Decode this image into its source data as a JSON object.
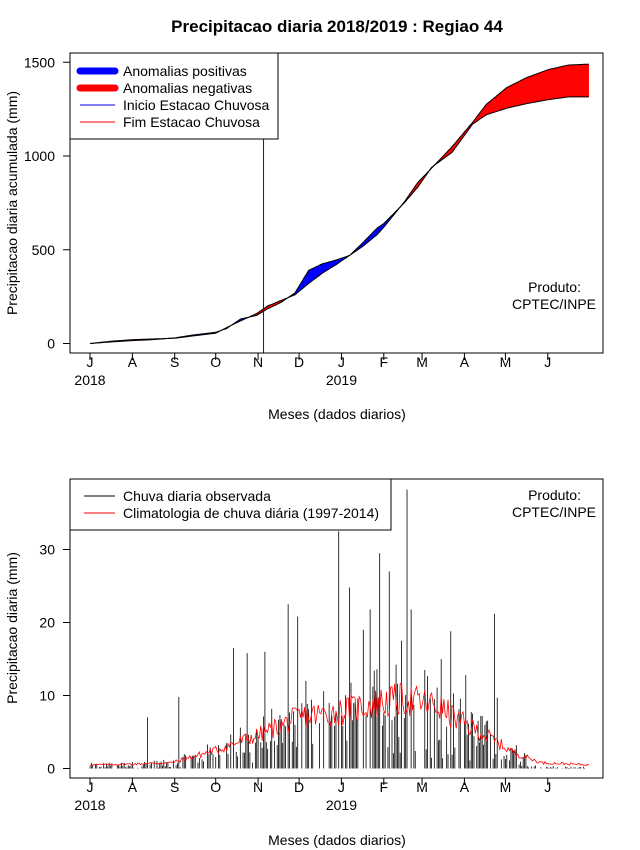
{
  "chart_data": [
    {
      "type": "area",
      "title": "Precipitacao diaria 2018/2019 : Regiao 44",
      "xlabel": "Meses (dados diarios)",
      "ylabel": "Precipitacao diaria acumulada (mm)",
      "ylim": [
        0,
        1550
      ],
      "yticks": [
        0,
        500,
        1000,
        1500
      ],
      "month_ticks": [
        "J",
        "A",
        "S",
        "O",
        "N",
        "D",
        "J",
        "F",
        "M",
        "A",
        "M",
        "J"
      ],
      "year_labels": [
        {
          "label": "2018",
          "month_index": 0
        },
        {
          "label": "2019",
          "month_index": 6
        }
      ],
      "legend": [
        "Anomalias positivas",
        "Anomalias negativas",
        "Inicio Estacao Chuvosa",
        "Fim Estacao Chuvosa"
      ],
      "colors": {
        "positive": "#0000ff",
        "negative": "#ff0000",
        "onset": "#0000ff",
        "end": "#ff0000",
        "line": "#000000"
      },
      "onset_day": 127,
      "annotation": [
        "Produto:",
        "CPTEC/INPE"
      ],
      "series": [
        {
          "name": "Observada acumulada (mm)",
          "x": [
            0,
            15,
            30,
            45,
            62,
            75,
            92,
            100,
            110,
            122,
            130,
            140,
            150,
            160,
            170,
            180,
            190,
            200,
            210,
            215,
            230,
            240,
            250,
            265,
            280,
            290,
            305,
            320,
            335,
            350,
            365
          ],
          "values": [
            0,
            8,
            15,
            20,
            30,
            45,
            60,
            80,
            130,
            150,
            185,
            220,
            270,
            390,
            425,
            445,
            470,
            540,
            615,
            640,
            750,
            835,
            940,
            1020,
            1170,
            1220,
            1255,
            1280,
            1300,
            1315,
            1315
          ]
        },
        {
          "name": "Climatologia acumulada (mm)",
          "x": [
            0,
            15,
            30,
            45,
            62,
            75,
            92,
            100,
            110,
            122,
            130,
            140,
            150,
            160,
            170,
            180,
            190,
            200,
            210,
            215,
            230,
            240,
            250,
            265,
            280,
            290,
            305,
            320,
            335,
            350,
            365
          ],
          "values": [
            0,
            12,
            20,
            24,
            28,
            40,
            55,
            85,
            120,
            160,
            200,
            230,
            260,
            320,
            375,
            420,
            470,
            520,
            580,
            620,
            755,
            860,
            935,
            1050,
            1180,
            1275,
            1365,
            1420,
            1460,
            1485,
            1490
          ]
        }
      ]
    },
    {
      "type": "bar",
      "xlabel": "Meses (dados diarios)",
      "ylabel": "Precipitacao diaria (mm)",
      "ylim": [
        0,
        39
      ],
      "yticks": [
        0,
        10,
        20,
        30
      ],
      "month_ticks": [
        "J",
        "A",
        "S",
        "O",
        "N",
        "D",
        "J",
        "F",
        "M",
        "A",
        "M",
        "J"
      ],
      "year_labels": [
        {
          "label": "2018",
          "month_index": 0
        },
        {
          "label": "2019",
          "month_index": 6
        }
      ],
      "legend": [
        "Chuva diaria observada",
        "Climatologia de chuva diária (1997-2014)"
      ],
      "colors": {
        "observed": "#000000",
        "climatology": "#ff0000"
      },
      "annotation": [
        "Produto:",
        "CPTEC/INPE"
      ],
      "observed_peaks": [
        {
          "day": 42,
          "mm": 7
        },
        {
          "day": 65,
          "mm": 9.8
        },
        {
          "day": 94,
          "mm": 3.2
        },
        {
          "day": 105,
          "mm": 16.5
        },
        {
          "day": 115,
          "mm": 15.8
        },
        {
          "day": 128,
          "mm": 16
        },
        {
          "day": 145,
          "mm": 22.5
        },
        {
          "day": 152,
          "mm": 20.8
        },
        {
          "day": 158,
          "mm": 12
        },
        {
          "day": 175,
          "mm": 9
        },
        {
          "day": 182,
          "mm": 32.5
        },
        {
          "day": 190,
          "mm": 24.8
        },
        {
          "day": 200,
          "mm": 19
        },
        {
          "day": 205,
          "mm": 21.8
        },
        {
          "day": 212,
          "mm": 29.5
        },
        {
          "day": 219,
          "mm": 27
        },
        {
          "day": 228,
          "mm": 17.5
        },
        {
          "day": 232,
          "mm": 38.2
        },
        {
          "day": 235,
          "mm": 21.8
        },
        {
          "day": 245,
          "mm": 13.5
        },
        {
          "day": 252,
          "mm": 9.5
        },
        {
          "day": 257,
          "mm": 15
        },
        {
          "day": 264,
          "mm": 18.8
        },
        {
          "day": 275,
          "mm": 12.8
        },
        {
          "day": 286,
          "mm": 7.2
        },
        {
          "day": 296,
          "mm": 21.2
        },
        {
          "day": 298,
          "mm": 9.7
        },
        {
          "day": 312,
          "mm": 3.2
        }
      ],
      "climatology_profile": [
        {
          "day": 0,
          "mm": 0.5
        },
        {
          "day": 30,
          "mm": 0.6
        },
        {
          "day": 60,
          "mm": 0.8
        },
        {
          "day": 92,
          "mm": 2.5
        },
        {
          "day": 122,
          "mm": 4.5
        },
        {
          "day": 153,
          "mm": 7
        },
        {
          "day": 184,
          "mm": 7.8
        },
        {
          "day": 212,
          "mm": 9
        },
        {
          "day": 230,
          "mm": 9.5
        },
        {
          "day": 243,
          "mm": 9
        },
        {
          "day": 255,
          "mm": 8.5
        },
        {
          "day": 270,
          "mm": 6.5
        },
        {
          "day": 290,
          "mm": 4.5
        },
        {
          "day": 310,
          "mm": 2.2
        },
        {
          "day": 330,
          "mm": 0.8
        },
        {
          "day": 365,
          "mm": 0.5
        }
      ]
    }
  ]
}
